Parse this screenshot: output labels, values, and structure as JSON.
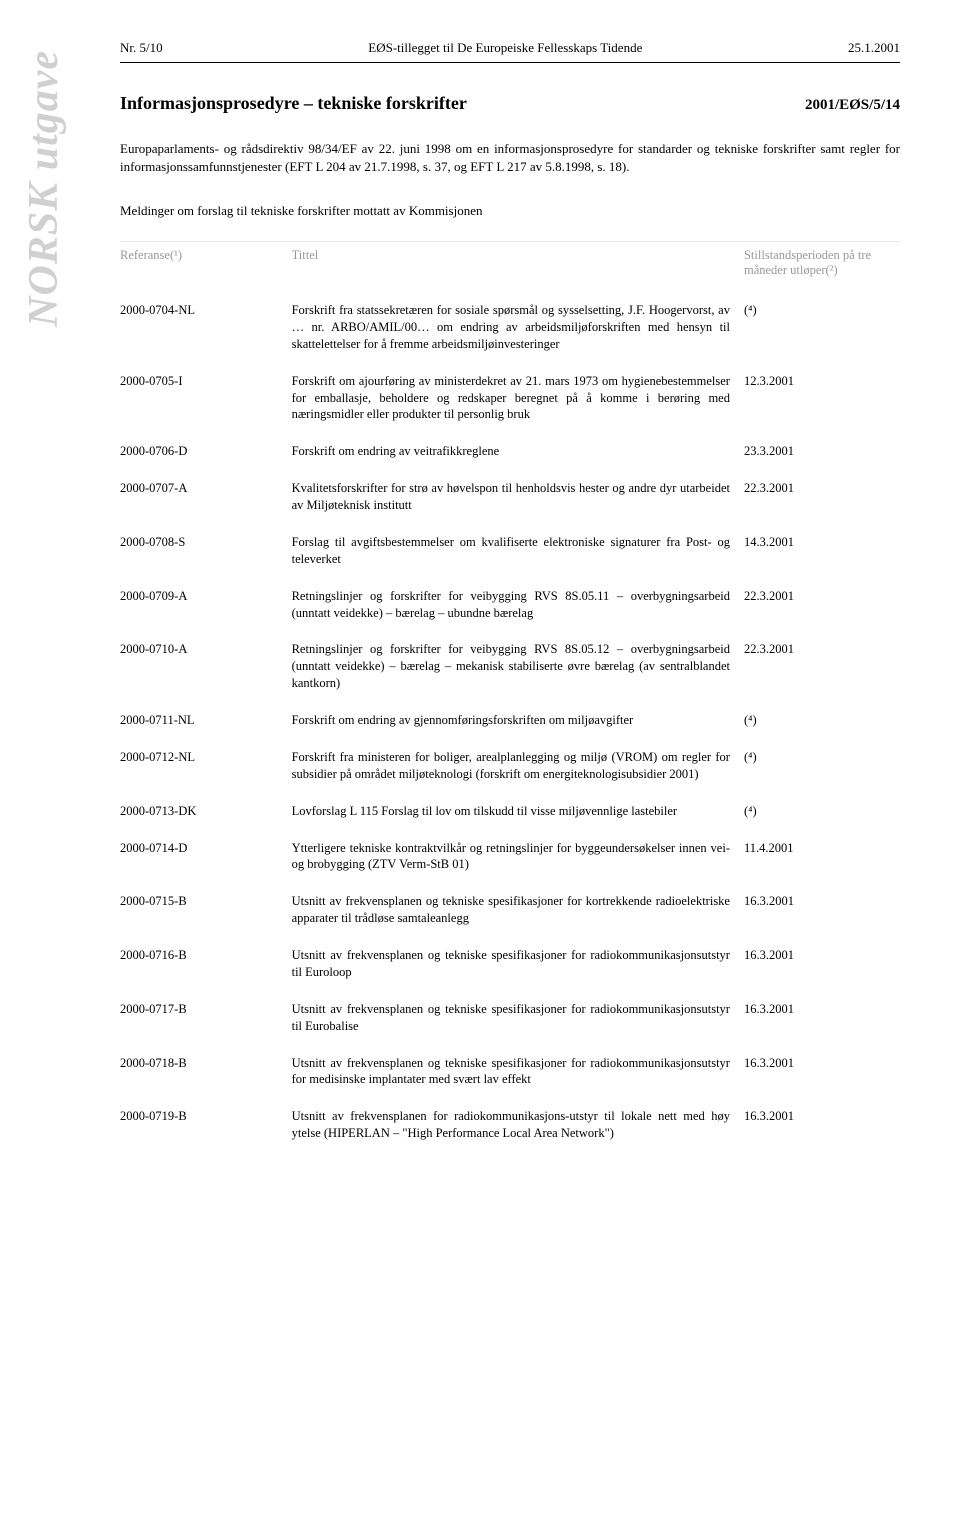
{
  "header": {
    "left": "Nr. 5/10",
    "center": "EØS-tillegget til De Europeiske Fellesskaps Tidende",
    "right": "25.1.2001"
  },
  "vertical_label": "NORSK utgave",
  "title": "Informasjonsprosedyre – tekniske forskrifter",
  "doc_id": "2001/EØS/5/14",
  "intro": "Europaparlaments- og rådsdirektiv 98/34/EF av 22. juni 1998 om en informasjonsprosedyre for standarder og tekniske forskrifter samt regler for informasjonssamfunnstjenester (EFT L 204 av 21.7.1998, s. 37, og EFT L 217 av 5.8.1998, s. 18).",
  "subhead": "Meldinger om forslag til tekniske forskrifter mottatt av Kommisjonen",
  "columns": {
    "ref": "Referanse(¹)",
    "title": "Tittel",
    "period": "Stillstandsperioden på tre måneder utløper(²)"
  },
  "rows": [
    {
      "ref": "2000-0704-NL",
      "title": "Forskrift fra statssekretæren for sosiale spørsmål og sysselsetting, J.F. Hoogervorst, av … nr. ARBO/AMIL/00… om endring av arbeidsmiljøforskriften med hensyn til skattelettelser for å fremme arbeidsmiljøinvesteringer",
      "period": "(⁴)",
      "group_start": true
    },
    {
      "ref": "2000-0705-I",
      "title": "Forskrift om ajourføring av ministerdekret av 21. mars 1973 om hygienebestemmelser for emballasje, beholdere og redskaper beregnet på å komme i berøring med næringsmidler eller produkter til personlig bruk",
      "period": "12.3.2001"
    },
    {
      "ref": "2000-0706-D",
      "title": "Forskrift om endring av veitrafikkreglene",
      "period": "23.3.2001",
      "group_start": true
    },
    {
      "ref": "2000-0707-A",
      "title": "Kvalitetsforskrifter for strø av høvelspon til henholdsvis hester og andre dyr utarbeidet av Miljøteknisk institutt",
      "period": "22.3.2001",
      "group_start": true
    },
    {
      "ref": "2000-0708-S",
      "title": "Forslag til avgiftsbestemmelser om kvalifiserte elektroniske signaturer fra Post- og televerket",
      "period": "14.3.2001"
    },
    {
      "ref": "2000-0709-A",
      "title": "Retningslinjer og forskrifter for veibygging RVS 8S.05.11 – overbygningsarbeid (unntatt veidekke) – bærelag – ubundne bærelag",
      "period": "22.3.2001"
    },
    {
      "ref": "2000-0710-A",
      "title": "Retningslinjer og forskrifter for veibygging RVS 8S.05.12 – overbygningsarbeid (unntatt veidekke) – bærelag – mekanisk stabiliserte øvre bærelag (av sentralblandet kantkorn)",
      "period": "22.3.2001"
    },
    {
      "ref": "2000-0711-NL",
      "title": "Forskrift om endring av gjennomføringsforskriften om miljøavgifter",
      "period": "(⁴)",
      "group_start": true
    },
    {
      "ref": "2000-0712-NL",
      "title": "Forskrift fra ministeren for boliger, arealplanlegging og miljø (VROM) om regler for subsidier på området miljøteknologi (forskrift om energiteknologisubsidier 2001)",
      "period": "(⁴)"
    },
    {
      "ref": "2000-0713-DK",
      "title": "Lovforslag L 115 Forslag til lov om tilskudd til visse miljøvennlige lastebiler",
      "period": "(⁴)",
      "group_start": true
    },
    {
      "ref": "2000-0714-D",
      "title": "Ytterligere tekniske kontraktvilkår og retningslinjer for byggeundersøkelser innen vei- og brobygging (ZTV Verm-StB 01)",
      "period": "11.4.2001"
    },
    {
      "ref": "2000-0715-B",
      "title": "Utsnitt av frekvensplanen og tekniske spesifikasjoner for kortrekkende radioelektriske apparater til trådløse samtaleanlegg",
      "period": "16.3.2001"
    },
    {
      "ref": "2000-0716-B",
      "title": "Utsnitt av frekvensplanen og tekniske spesifikasjoner for radiokommunikasjonsutstyr til Euroloop",
      "period": "16.3.2001",
      "group_start": true
    },
    {
      "ref": "2000-0717-B",
      "title": "Utsnitt av frekvensplanen og tekniske spesifikasjoner for radiokommunikasjonsutstyr til Eurobalise",
      "period": "16.3.2001"
    },
    {
      "ref": "2000-0718-B",
      "title": "Utsnitt av frekvensplanen og tekniske spesifikasjoner for radiokommunikasjonsutstyr for medisinske implantater med svært lav effekt",
      "period": "16.3.2001"
    },
    {
      "ref": "2000-0719-B",
      "title": "Utsnitt av frekvensplanen for radiokommunikasjons-utstyr til lokale nett med høy ytelse (HIPERLAN – \"High Performance Local Area Network\")",
      "period": "16.3.2001"
    }
  ],
  "colors": {
    "text": "#000000",
    "muted": "#999999",
    "vertical": "#d0d0d0",
    "border": "#e8e8e8",
    "bg": "#ffffff"
  },
  "fonts": {
    "body": "Times New Roman",
    "body_size_pt": 10,
    "title_size_pt": 14,
    "vertical_size_pt": 32
  }
}
